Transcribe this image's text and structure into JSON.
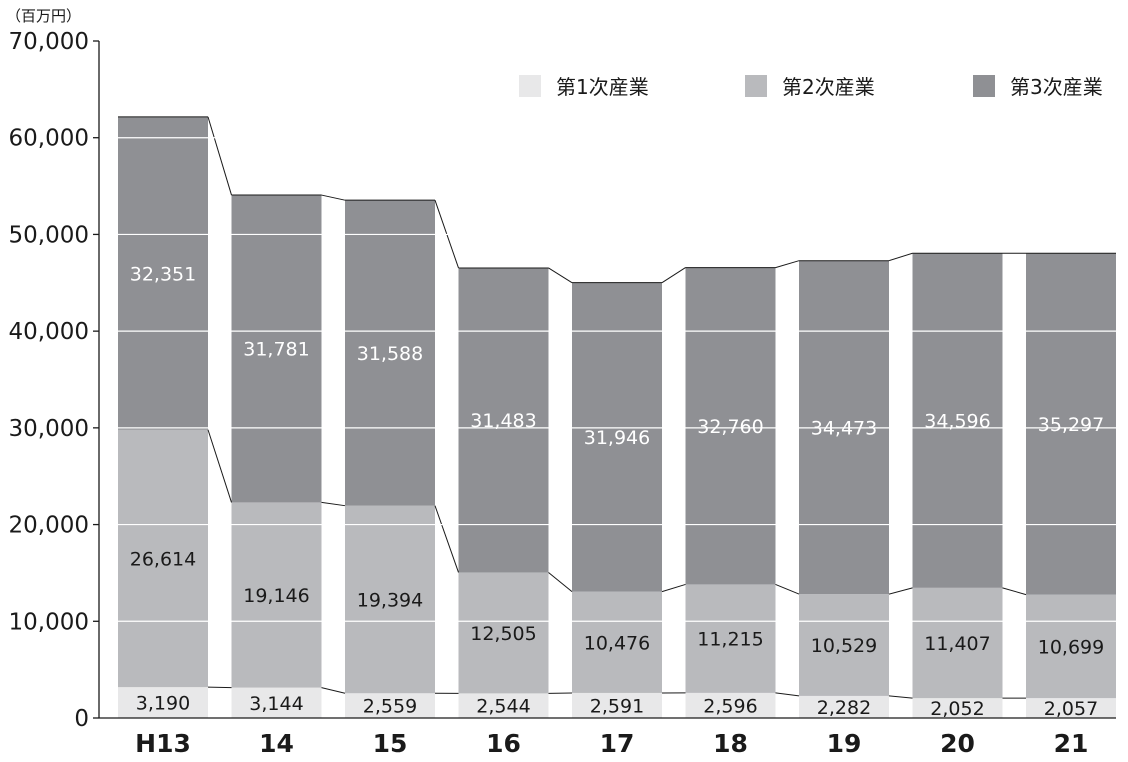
{
  "chart_data": {
    "type": "bar",
    "stacked": true,
    "unit_label": "（百万円）",
    "categories": [
      "H13",
      "14",
      "15",
      "16",
      "17",
      "18",
      "19",
      "20",
      "21"
    ],
    "series": [
      {
        "name": "第1次産業",
        "color": "#e8e8e9",
        "label_color": "#1a1a1a",
        "values": [
          3190,
          3144,
          2559,
          2544,
          2591,
          2596,
          2282,
          2052,
          2057
        ]
      },
      {
        "name": "第2次産業",
        "color": "#b9babd",
        "label_color": "#1a1a1a",
        "values": [
          26614,
          19146,
          19394,
          12505,
          10476,
          11215,
          10529,
          11407,
          10699
        ]
      },
      {
        "name": "第3次産業",
        "color": "#8f9094",
        "label_color": "#ffffff",
        "values": [
          32351,
          31781,
          31588,
          31483,
          31946,
          32760,
          34473,
          34596,
          35297
        ]
      }
    ],
    "ylim": [
      0,
      70000
    ],
    "yticks": [
      0,
      10000,
      20000,
      30000,
      40000,
      50000,
      60000,
      70000
    ],
    "ytick_labels": [
      "0",
      "10,000",
      "20,000",
      "30,000",
      "40,000",
      "50,000",
      "60,000",
      "70,000"
    ],
    "value_labels": [
      [
        "3,190",
        "3,144",
        "2,559",
        "2,544",
        "2,591",
        "2,596",
        "2,282",
        "2,052",
        "2,057"
      ],
      [
        "26,614",
        "19,146",
        "19,394",
        "12,505",
        "10,476",
        "11,215",
        "10,529",
        "11,407",
        "10,699"
      ],
      [
        "32,351",
        "31,781",
        "31,588",
        "31,483",
        "31,946",
        "32,760",
        "34,473",
        "34,596",
        "35,297"
      ]
    ],
    "grid": true,
    "legend_position": "top-right",
    "connector_lines": true
  }
}
